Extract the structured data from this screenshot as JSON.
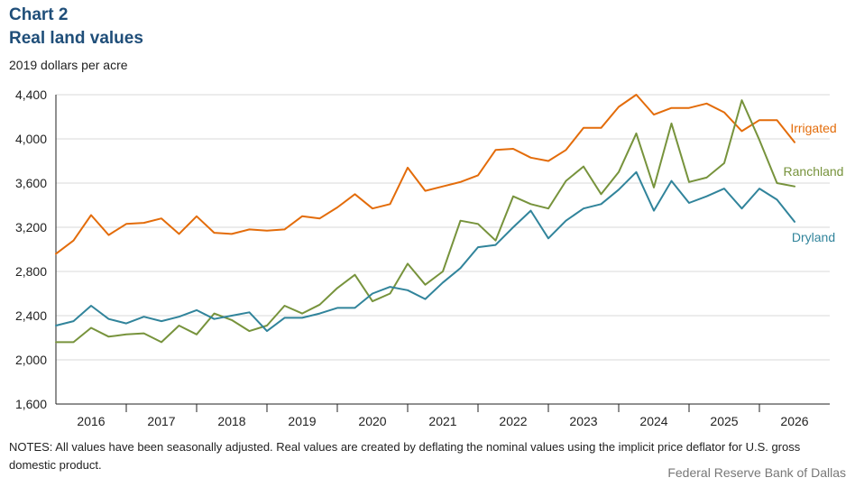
{
  "header": {
    "chart_label": "Chart 2",
    "title": "Real land values",
    "units": "2019 dollars per acre"
  },
  "footer": {
    "notes": "NOTES: All values have been seasonally adjusted. Real values are created by deflating the nominal values using the implicit price deflator for U.S. gross domestic product.",
    "source": "Federal Reserve Bank of Dallas"
  },
  "chart_data": {
    "type": "line",
    "title": "Real land values",
    "ylabel": "2019 dollars per acre",
    "ylim": [
      1600,
      4400
    ],
    "yticks": [
      1600,
      2000,
      2400,
      2800,
      3200,
      3600,
      4000,
      4400
    ],
    "ytick_labels": [
      "1,600",
      "2,000",
      "2,400",
      "2,800",
      "3,200",
      "3,600",
      "4,000",
      "4,400"
    ],
    "x_labels": [
      "2016",
      "2017",
      "2018",
      "2019",
      "2020",
      "2021",
      "2022",
      "2023",
      "2024",
      "2025",
      "2026"
    ],
    "points_per_label": 4,
    "grid": "horizontal",
    "legend": "inline-right",
    "series": [
      {
        "name": "Irrigated",
        "color": "#e36c0a",
        "values": [
          2960,
          3080,
          3310,
          3130,
          3230,
          3240,
          3280,
          3140,
          3300,
          3150,
          3140,
          3180,
          3170,
          3180,
          3300,
          3280,
          3380,
          3500,
          3370,
          3410,
          3740,
          3530,
          3570,
          3610,
          3670,
          3900,
          3910,
          3830,
          3800,
          3900,
          4100,
          4100,
          4290,
          4400,
          4220,
          4280,
          4280,
          4320,
          4240,
          4070,
          4170,
          4170,
          3970
        ]
      },
      {
        "name": "Ranchland",
        "color": "#77933c",
        "values": [
          2160,
          2160,
          2290,
          2210,
          2230,
          2240,
          2160,
          2310,
          2230,
          2420,
          2360,
          2260,
          2310,
          2490,
          2420,
          2500,
          2650,
          2770,
          2530,
          2600,
          2870,
          2680,
          2800,
          3260,
          3230,
          3080,
          3480,
          3410,
          3370,
          3620,
          3750,
          3500,
          3700,
          4050,
          3560,
          4140,
          3610,
          3650,
          3780,
          4350,
          3990,
          3600,
          3570
        ]
      },
      {
        "name": "Dryland",
        "color": "#31849b",
        "values": [
          2310,
          2350,
          2490,
          2370,
          2330,
          2390,
          2350,
          2390,
          2450,
          2370,
          2400,
          2430,
          2260,
          2380,
          2380,
          2420,
          2470,
          2470,
          2600,
          2660,
          2630,
          2550,
          2700,
          2830,
          3020,
          3040,
          3200,
          3350,
          3100,
          3260,
          3370,
          3410,
          3540,
          3700,
          3350,
          3620,
          3420,
          3480,
          3550,
          3370,
          3550,
          3450,
          3250
        ]
      }
    ]
  }
}
